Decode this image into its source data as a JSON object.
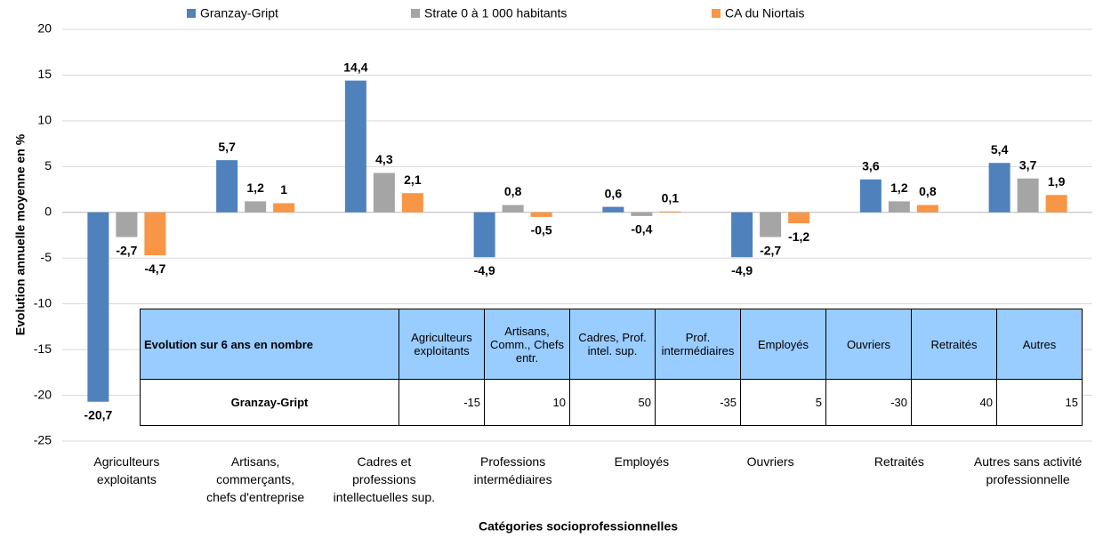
{
  "chart_data": {
    "type": "bar",
    "y_label": "Evolution annuelle moyenne en %",
    "x_label": "Catégories socioprofessionnelles",
    "categories": [
      [
        "Agriculteurs",
        "exploitants"
      ],
      [
        "Artisans,",
        "commerçants,",
        "chefs d'entreprise"
      ],
      [
        "Cadres et",
        "professions",
        "intellectuelles sup."
      ],
      [
        "Professions",
        "intermédiaires"
      ],
      [
        "Employés"
      ],
      [
        "Ouvriers"
      ],
      [
        "Retraités"
      ],
      [
        "Autres sans activité",
        "professionnelle"
      ]
    ],
    "series": [
      {
        "name": "Granzay-Gript",
        "color": "#4f81bd",
        "values": [
          -20.7,
          5.7,
          14.4,
          -4.9,
          0.6,
          -4.9,
          3.6,
          5.4
        ],
        "value_labels": [
          "-20,7",
          "5,7",
          "14,4",
          "-4,9",
          "0,6",
          "-4,9",
          "3,6",
          "5,4"
        ]
      },
      {
        "name": "Strate 0 à 1 000 habitants",
        "color": "#a5a5a5",
        "values": [
          -2.7,
          1.2,
          4.3,
          0.8,
          -0.4,
          -2.7,
          1.2,
          3.7
        ],
        "value_labels": [
          "-2,7",
          "1,2",
          "4,3",
          "0,8",
          "-0,4",
          "-2,7",
          "1,2",
          "3,7"
        ]
      },
      {
        "name": "CA du Niortais",
        "color": "#f79646",
        "values": [
          -4.7,
          1,
          2.1,
          -0.5,
          0.1,
          -1.2,
          0.8,
          1.9
        ],
        "value_labels": [
          "-4,7",
          "1",
          "2,1",
          "-0,5",
          "0,1",
          "-1,2",
          "0,8",
          "1,9"
        ]
      }
    ],
    "ylim": [
      -25,
      20
    ],
    "yticks": [
      -25,
      -20,
      -15,
      -10,
      -5,
      0,
      5,
      10,
      15,
      20
    ],
    "grid": true,
    "legend": "top"
  },
  "table": {
    "header": [
      "Evolution sur 6 ans en nombre",
      "Agriculteurs exploitants",
      "Artisans, Comm., Chefs entr.",
      "Cadres, Prof. intel. sup.",
      "Prof. intermédiaires",
      "Employés",
      "Ouvriers",
      "Retraités",
      "Autres"
    ],
    "rows": [
      [
        "Granzay-Gript",
        "-15",
        "10",
        "50",
        "-35",
        "5",
        "-30",
        "40",
        "15"
      ]
    ]
  }
}
